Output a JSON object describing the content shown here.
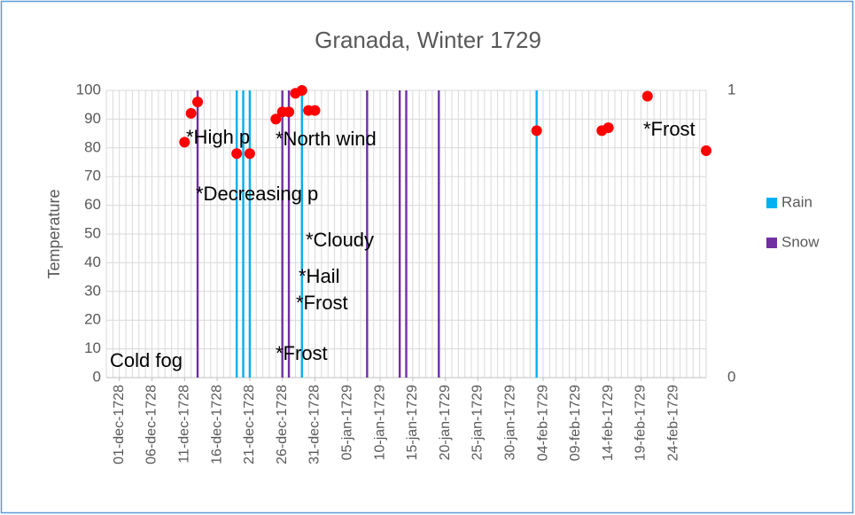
{
  "chart_data": {
    "type": "scatter",
    "title": "Granada, Winter 1729",
    "y_label": "Temperature",
    "xlim": [
      "29-nov-1728",
      "01-mar-1729"
    ],
    "xticks": [
      "01-dec-1728",
      "06-dec-1728",
      "11-dec-1728",
      "16-dec-1728",
      "21-dec-1728",
      "26-dec-1728",
      "31-dec-1728",
      "05-jan-1729",
      "10-jan-1729",
      "15-jan-1729",
      "20-jan-1729",
      "25-jan-1729",
      "30-jan-1729",
      "04-feb-1729",
      "09-feb-1729",
      "14-feb-1729",
      "19-feb-1729",
      "24-feb-1729"
    ],
    "x_minor_grid": "daily",
    "ylim": [
      0,
      100
    ],
    "yticks": [
      0,
      10,
      20,
      30,
      40,
      50,
      60,
      70,
      80,
      90,
      100
    ],
    "y2lim": [
      0,
      1
    ],
    "y2ticks": [
      0,
      1
    ],
    "grid": true,
    "legend": "right",
    "series": [
      {
        "type": "scatter",
        "color": "#ff0000",
        "x": [
          "11-dec-1728",
          "12-dec-1728",
          "13-dec-1728",
          "19-dec-1728",
          "21-dec-1728",
          "25-dec-1728",
          "26-dec-1728",
          "27-dec-1728",
          "28-dec-1728",
          "29-dec-1728",
          "30-dec-1728",
          "31-dec-1728",
          "03-feb-1729",
          "13-feb-1729",
          "14-feb-1729",
          "20-feb-1729",
          "01-mar-1729"
        ],
        "values": [
          82,
          92,
          96,
          78,
          78,
          90,
          92.5,
          92.5,
          99,
          100,
          93,
          93,
          86,
          86,
          87,
          98,
          79
        ]
      },
      {
        "type": "bar",
        "name": "Rain",
        "color": "#00b0f0",
        "axis": "y2",
        "x": [
          "19-dec-1728",
          "20-dec-1728",
          "21-dec-1728",
          "29-dec-1728",
          "03-feb-1729"
        ],
        "values": [
          1,
          1,
          1,
          1,
          1
        ]
      },
      {
        "type": "bar",
        "name": "Snow",
        "color": "#7030a0",
        "axis": "y2",
        "x": [
          "13-dec-1728",
          "26-dec-1728",
          "27-dec-1728",
          "08-jan-1729",
          "13-jan-1729",
          "14-jan-1729",
          "19-jan-1729"
        ],
        "values": [
          1,
          1,
          1,
          1,
          1,
          1,
          1
        ]
      }
    ],
    "annotations": [
      "Cold fog",
      "*High p",
      "*Decreasing p",
      "*North wind",
      "*Cloudy",
      "*Hail",
      "*Frost",
      "*Frost",
      "*Frost"
    ]
  }
}
